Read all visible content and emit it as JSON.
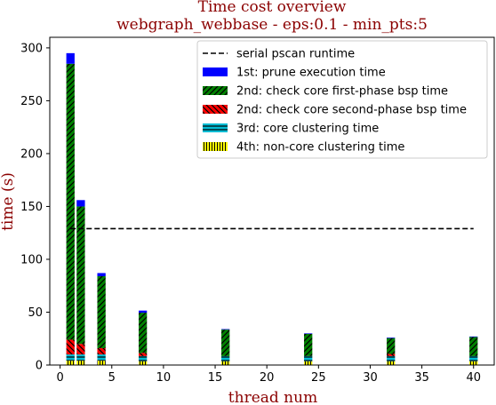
{
  "chart_data": {
    "type": "bar",
    "stacked": true,
    "title": "Time cost overview",
    "subtitle": "webgraph_webbase - eps:0.1 - min_pts:5",
    "xlabel": "thread num",
    "ylabel": "time (s)",
    "xlim": [
      -1,
      42
    ],
    "ylim": [
      0,
      310
    ],
    "xticks": [
      "0",
      "5",
      "10",
      "15",
      "20",
      "25",
      "30",
      "35",
      "40"
    ],
    "yticks": [
      "0",
      "50",
      "100",
      "150",
      "200",
      "250",
      "300"
    ],
    "x": [
      1,
      2,
      4,
      8,
      16,
      24,
      32,
      40
    ],
    "series": [
      {
        "name": "4th: non-core clustering time",
        "color": "#ffff00",
        "hatch": "vertical",
        "values": [
          4,
          4,
          4,
          3.5,
          3.5,
          3.5,
          3.5,
          3.5
        ]
      },
      {
        "name": "3rd: core clustering time",
        "color": "#00bcd4",
        "hatch": "horizontal",
        "values": [
          6,
          6,
          6,
          5,
          5,
          5,
          5,
          5
        ]
      },
      {
        "name": "2nd: check core second-phase bsp time",
        "color": "#ff0000",
        "hatch": "backslash",
        "values": [
          14,
          10,
          6,
          3,
          0,
          0,
          2,
          0
        ]
      },
      {
        "name": "2nd: check core first-phase bsp time",
        "color": "#008000",
        "hatch": "slash",
        "values": [
          261,
          130,
          68,
          38,
          25,
          21,
          15,
          18
        ]
      },
      {
        "name": "1st: prune execution time",
        "color": "#0000ff",
        "hatch": "none",
        "values": [
          10,
          6,
          3,
          2,
          0.5,
          0.5,
          0.5,
          0.5
        ]
      }
    ],
    "reference_line": {
      "name": "serial pscan runtime",
      "y": 129,
      "x_range": [
        1,
        40
      ],
      "style": "dashed"
    },
    "legend_order": [
      "serial pscan runtime",
      "1st: prune execution time",
      "2nd: check core first-phase bsp time",
      "2nd: check core second-phase bsp time",
      "3rd: core clustering time",
      "4th: non-core clustering time"
    ],
    "legend_position": "top-right",
    "grid": false
  }
}
